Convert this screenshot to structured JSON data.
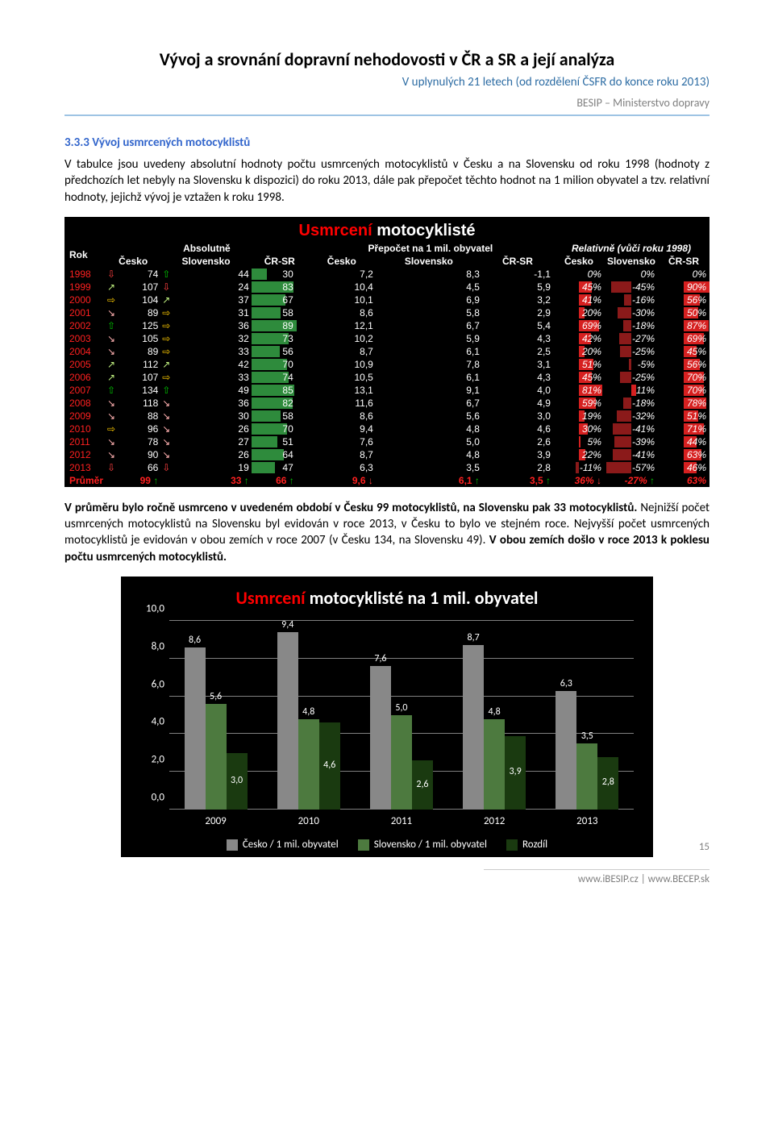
{
  "doc": {
    "title": "Vývoj a srovnání dopravní nehodovosti v ČR a SR a její analýza",
    "subtitle": "V uplynulých 21 letech (od rozdělení ČSFR do konce roku 2013)",
    "org": "BESIP – Ministerstvo dopravy",
    "footer_urls": "www.iBESIP.cz | www.BECEP.sk",
    "page_number": "15"
  },
  "section": {
    "heading": "3.3.3 Vývoj usmrcených motocyklistů",
    "para1": "V tabulce jsou uvedeny absolutní hodnoty počtu usmrcených motocyklistů v Česku a na Slovensku od roku 1998 (hodnoty z předchozích let nebyly na Slovensku k dispozici) do roku 2013, dále pak přepočet těchto hodnot na 1 milion obyvatel a tzv. relativní hodnoty, jejichž vývoj je vztažen k roku 1998.",
    "para2_a": "V průměru bylo ročně usmrceno v uvedeném období v Česku 99 motocyklistů, na Slovensku pak 33 motocyklistů.",
    "para2_b": " Nejnižší počet usmrcených motocyklistů na Slovensku byl evidován v roce 2013, v Česku to bylo ve stejném roce. Nejvyšší počet usmrcených motocyklistů je evidován v obou zemích v roce 2007 (v Česku 134, na Slovensku 49). ",
    "para2_c": "V obou zemích došlo v roce 2013 k poklesu počtu usmrcených motocyklistů."
  },
  "table": {
    "title_prefix": "Usmrcení",
    "title_rest": " motocyklisté",
    "hdr_rok": "Rok",
    "group_abs": "Absolutně",
    "group_per": "Přepočet na 1 mil. obyvatel",
    "group_rel": "Relativně (vůči roku 1998)",
    "col_cz": "Česko",
    "col_sk": "Slovensko",
    "col_diff": "ČR-SR",
    "avg_label": "Průměr",
    "colors": {
      "bar_green": "#2e8b3c",
      "bar_red_start": "#551010",
      "bar_red_neg": "#8b1a1a",
      "bar_red_pos": "#d62020",
      "text_red": "#ff2020",
      "arrow_up": "#00c000",
      "arrow_dn": "#ff4040",
      "arrow_same": "#ffcc00",
      "arrow_sl_up": "#c0f080",
      "arrow_sl_dn": "#ffb0b0"
    },
    "max_abs_cz": 134,
    "max_abs_sk": 49,
    "max_diff": 89,
    "rows": [
      {
        "year": "1998",
        "a_cz": "⇩",
        "cz": 74,
        "a_sk": "⇧",
        "sk": 44,
        "diff": 30,
        "p_cz": "7,2",
        "p_sk": "8,3",
        "p_diff": "-1,1",
        "r_cz": "0%",
        "r_cz_n": 0,
        "r_sk": "0%",
        "r_sk_n": 0,
        "r_diff": "0%",
        "r_diff_n": 0
      },
      {
        "year": "1999",
        "a_cz": "↗",
        "cz": 107,
        "a_sk": "⇩",
        "sk": 24,
        "diff": 83,
        "p_cz": "10,4",
        "p_sk": "4,5",
        "p_diff": "5,9",
        "r_cz": "45%",
        "r_cz_n": 45,
        "r_sk": "-45%",
        "r_sk_n": -45,
        "r_diff": "90%",
        "r_diff_n": 90
      },
      {
        "year": "2000",
        "a_cz": "⇨",
        "cz": 104,
        "a_sk": "↗",
        "sk": 37,
        "diff": 67,
        "p_cz": "10,1",
        "p_sk": "6,9",
        "p_diff": "3,2",
        "r_cz": "41%",
        "r_cz_n": 41,
        "r_sk": "-16%",
        "r_sk_n": -16,
        "r_diff": "56%",
        "r_diff_n": 56
      },
      {
        "year": "2001",
        "a_cz": "↘",
        "cz": 89,
        "a_sk": "⇨",
        "sk": 31,
        "diff": 58,
        "p_cz": "8,6",
        "p_sk": "5,8",
        "p_diff": "2,9",
        "r_cz": "20%",
        "r_cz_n": 20,
        "r_sk": "-30%",
        "r_sk_n": -30,
        "r_diff": "50%",
        "r_diff_n": 50
      },
      {
        "year": "2002",
        "a_cz": "⇧",
        "cz": 125,
        "a_sk": "⇨",
        "sk": 36,
        "diff": 89,
        "p_cz": "12,1",
        "p_sk": "6,7",
        "p_diff": "5,4",
        "r_cz": "69%",
        "r_cz_n": 69,
        "r_sk": "-18%",
        "r_sk_n": -18,
        "r_diff": "87%",
        "r_diff_n": 87
      },
      {
        "year": "2003",
        "a_cz": "↘",
        "cz": 105,
        "a_sk": "⇨",
        "sk": 32,
        "diff": 73,
        "p_cz": "10,2",
        "p_sk": "5,9",
        "p_diff": "4,3",
        "r_cz": "42%",
        "r_cz_n": 42,
        "r_sk": "-27%",
        "r_sk_n": -27,
        "r_diff": "69%",
        "r_diff_n": 69
      },
      {
        "year": "2004",
        "a_cz": "↘",
        "cz": 89,
        "a_sk": "⇨",
        "sk": 33,
        "diff": 56,
        "p_cz": "8,7",
        "p_sk": "6,1",
        "p_diff": "2,5",
        "r_cz": "20%",
        "r_cz_n": 20,
        "r_sk": "-25%",
        "r_sk_n": -25,
        "r_diff": "45%",
        "r_diff_n": 45
      },
      {
        "year": "2005",
        "a_cz": "↗",
        "cz": 112,
        "a_sk": "↗",
        "sk": 42,
        "diff": 70,
        "p_cz": "10,9",
        "p_sk": "7,8",
        "p_diff": "3,1",
        "r_cz": "51%",
        "r_cz_n": 51,
        "r_sk": "-5%",
        "r_sk_n": -5,
        "r_diff": "56%",
        "r_diff_n": 56
      },
      {
        "year": "2006",
        "a_cz": "↗",
        "cz": 107,
        "a_sk": "⇨",
        "sk": 33,
        "diff": 74,
        "p_cz": "10,5",
        "p_sk": "6,1",
        "p_diff": "4,3",
        "r_cz": "45%",
        "r_cz_n": 45,
        "r_sk": "-25%",
        "r_sk_n": -25,
        "r_diff": "70%",
        "r_diff_n": 70
      },
      {
        "year": "2007",
        "a_cz": "⇧",
        "cz": 134,
        "a_sk": "⇧",
        "sk": 49,
        "diff": 85,
        "p_cz": "13,1",
        "p_sk": "9,1",
        "p_diff": "4,0",
        "r_cz": "81%",
        "r_cz_n": 81,
        "r_sk": "11%",
        "r_sk_n": 11,
        "r_diff": "70%",
        "r_diff_n": 70
      },
      {
        "year": "2008",
        "a_cz": "↘",
        "cz": 118,
        "a_sk": "↘",
        "sk": 36,
        "diff": 82,
        "p_cz": "11,6",
        "p_sk": "6,7",
        "p_diff": "4,9",
        "r_cz": "59%",
        "r_cz_n": 59,
        "r_sk": "-18%",
        "r_sk_n": -18,
        "r_diff": "78%",
        "r_diff_n": 78
      },
      {
        "year": "2009",
        "a_cz": "↘",
        "cz": 88,
        "a_sk": "↘",
        "sk": 30,
        "diff": 58,
        "p_cz": "8,6",
        "p_sk": "5,6",
        "p_diff": "3,0",
        "r_cz": "19%",
        "r_cz_n": 19,
        "r_sk": "-32%",
        "r_sk_n": -32,
        "r_diff": "51%",
        "r_diff_n": 51
      },
      {
        "year": "2010",
        "a_cz": "⇨",
        "cz": 96,
        "a_sk": "↘",
        "sk": 26,
        "diff": 70,
        "p_cz": "9,4",
        "p_sk": "4,8",
        "p_diff": "4,6",
        "r_cz": "30%",
        "r_cz_n": 30,
        "r_sk": "-41%",
        "r_sk_n": -41,
        "r_diff": "71%",
        "r_diff_n": 71
      },
      {
        "year": "2011",
        "a_cz": "↘",
        "cz": 78,
        "a_sk": "↘",
        "sk": 27,
        "diff": 51,
        "p_cz": "7,6",
        "p_sk": "5,0",
        "p_diff": "2,6",
        "r_cz": "5%",
        "r_cz_n": 5,
        "r_sk": "-39%",
        "r_sk_n": -39,
        "r_diff": "44%",
        "r_diff_n": 44
      },
      {
        "year": "2012",
        "a_cz": "↘",
        "cz": 90,
        "a_sk": "↘",
        "sk": 26,
        "diff": 64,
        "p_cz": "8,7",
        "p_sk": "4,8",
        "p_diff": "3,9",
        "r_cz": "22%",
        "r_cz_n": 22,
        "r_sk": "-41%",
        "r_sk_n": -41,
        "r_diff": "63%",
        "r_diff_n": 63
      },
      {
        "year": "2013",
        "a_cz": "⇩",
        "cz": 66,
        "a_sk": "⇩",
        "sk": 19,
        "diff": 47,
        "p_cz": "6,3",
        "p_sk": "3,5",
        "p_diff": "2,8",
        "r_cz": "-11%",
        "r_cz_n": -11,
        "r_sk": "-57%",
        "r_sk_n": -57,
        "r_diff": "46%",
        "r_diff_n": 46
      }
    ],
    "avg": {
      "cz": "99",
      "cz_arr": "↑",
      "sk": "33",
      "sk_arr": "↑",
      "diff": "66",
      "diff_arr": "↑",
      "p_cz": "9,6",
      "p_cz_arr": "↓",
      "p_sk": "6,1",
      "p_sk_arr": "↑",
      "p_diff": "3,5",
      "p_diff_arr": "↑",
      "r_cz": "36%",
      "r_cz_arr": "↓",
      "r_sk": "-27%",
      "r_sk_arr": "↑",
      "r_diff": "63%",
      "r_diff_arr": ""
    }
  },
  "chart": {
    "title_prefix": "Usmrcení",
    "title_rest": " motocyklisté na 1 mil. obyvatel",
    "ymax": 10.0,
    "ystep": 2.0,
    "yticks": [
      "0,0",
      "2,0",
      "4,0",
      "6,0",
      "8,0",
      "10,0"
    ],
    "colors": {
      "cz": "#888888",
      "sk": "#4d7a3f",
      "diff": "#1a3a10",
      "grid": "#808080"
    },
    "series_labels": {
      "cz": "Česko / 1 mil. obyvatel",
      "sk": "Slovensko / 1 mil. obyvatel",
      "diff": "Rozdíl"
    },
    "categories": [
      "2009",
      "2010",
      "2011",
      "2012",
      "2013"
    ],
    "data": [
      {
        "cz": 8.6,
        "cz_l": "8,6",
        "sk": 5.6,
        "sk_l": "5,6",
        "diff": 3.0,
        "diff_l": "3,0"
      },
      {
        "cz": 9.4,
        "cz_l": "9,4",
        "sk": 4.8,
        "sk_l": "4,8",
        "diff": 4.6,
        "diff_l": "4,6"
      },
      {
        "cz": 7.6,
        "cz_l": "7,6",
        "sk": 5.0,
        "sk_l": "5,0",
        "diff": 2.6,
        "diff_l": "2,6"
      },
      {
        "cz": 8.7,
        "cz_l": "8,7",
        "sk": 4.8,
        "sk_l": "4,8",
        "diff": 3.9,
        "diff_l": "3,9"
      },
      {
        "cz": 6.3,
        "cz_l": "6,3",
        "sk": 3.5,
        "sk_l": "3,5",
        "diff": 2.8,
        "diff_l": "2,8"
      }
    ]
  }
}
